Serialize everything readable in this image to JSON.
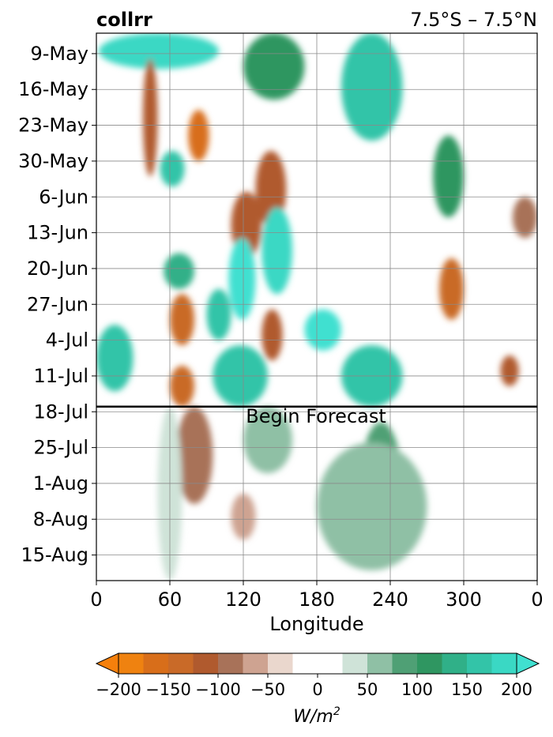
{
  "chart_data": {
    "type": "heatmap",
    "title": "collrr",
    "subtitle": "7.5°S – 7.5°N",
    "xlabel": "Longitude",
    "x_ticks": [
      {
        "lon": 0,
        "label": "0"
      },
      {
        "lon": 60,
        "label": "60"
      },
      {
        "lon": 120,
        "label": "120"
      },
      {
        "lon": 180,
        "label": "180"
      },
      {
        "lon": 240,
        "label": "240"
      },
      {
        "lon": 300,
        "label": "300"
      },
      {
        "lon": 360,
        "label": "0"
      }
    ],
    "xlim": [
      0,
      360
    ],
    "time_range": [
      "2024-05-05",
      "2024-08-20"
    ],
    "y_ticks": [
      {
        "date": "2024-05-09",
        "label": "9-May"
      },
      {
        "date": "2024-05-16",
        "label": "16-May"
      },
      {
        "date": "2024-05-23",
        "label": "23-May"
      },
      {
        "date": "2024-05-30",
        "label": "30-May"
      },
      {
        "date": "2024-06-06",
        "label": "6-Jun"
      },
      {
        "date": "2024-06-13",
        "label": "13-Jun"
      },
      {
        "date": "2024-06-20",
        "label": "20-Jun"
      },
      {
        "date": "2024-06-27",
        "label": "27-Jun"
      },
      {
        "date": "2024-07-04",
        "label": "4-Jul"
      },
      {
        "date": "2024-07-11",
        "label": "11-Jul"
      },
      {
        "date": "2024-07-18",
        "label": "18-Jul"
      },
      {
        "date": "2024-07-25",
        "label": "25-Jul"
      },
      {
        "date": "2024-08-01",
        "label": "1-Aug"
      },
      {
        "date": "2024-08-08",
        "label": "8-Aug"
      },
      {
        "date": "2024-08-15",
        "label": "15-Aug"
      }
    ],
    "forecast_start_date": "2024-07-17",
    "forecast_label": "Begin Forecast",
    "grid": true,
    "colorbar": {
      "label": "W/m",
      "label_exponent": "2",
      "orientation": "horizontal",
      "extend": "both",
      "levels": [
        -200,
        -175,
        -150,
        -125,
        -100,
        -75,
        -50,
        -25,
        25,
        50,
        75,
        100,
        125,
        150,
        175,
        200
      ],
      "colors": [
        "#ef8210",
        "#d86e1a",
        "#c96a28",
        "#b05a2e",
        "#a87259",
        "#cea391",
        "#ead7cd",
        "#ffffff",
        "#cfe3d8",
        "#8fc0a5",
        "#4fa075",
        "#2f9661",
        "#30b088",
        "#33c4a8",
        "#3ad8c4"
      ],
      "under_color": "#f5800c",
      "over_color": "#40e0d0",
      "tick_values": [
        -200,
        -150,
        -100,
        -50,
        0,
        50,
        100,
        150,
        200
      ],
      "tick_labels": [
        "−200",
        "−150",
        "−100",
        "−50",
        "0",
        "50",
        "100",
        "150",
        "200"
      ]
    },
    "anomaly_features": [
      {
        "date_start": "2024-05-05",
        "date_end": "2024-05-12",
        "lon_start": 2,
        "lon_end": 100,
        "value": 175
      },
      {
        "date_start": "2024-05-05",
        "date_end": "2024-05-26",
        "lon_start": 200,
        "lon_end": 250,
        "value": 150
      },
      {
        "date_start": "2024-05-05",
        "date_end": "2024-05-18",
        "lon_start": 120,
        "lon_end": 170,
        "value": 100
      },
      {
        "date_start": "2024-05-20",
        "date_end": "2024-05-30",
        "lon_start": 75,
        "lon_end": 92,
        "value": -175
      },
      {
        "date_start": "2024-05-10",
        "date_end": "2024-06-02",
        "lon_start": 38,
        "lon_end": 50,
        "value": -110
      },
      {
        "date_start": "2024-05-28",
        "date_end": "2024-06-04",
        "lon_start": 52,
        "lon_end": 72,
        "value": 150
      },
      {
        "date_start": "2024-05-28",
        "date_end": "2024-06-12",
        "lon_start": 130,
        "lon_end": 155,
        "value": -120
      },
      {
        "date_start": "2024-05-25",
        "date_end": "2024-06-10",
        "lon_start": 275,
        "lon_end": 300,
        "value": 100
      },
      {
        "date_start": "2024-06-05",
        "date_end": "2024-06-18",
        "lon_start": 110,
        "lon_end": 135,
        "value": -110
      },
      {
        "date_start": "2024-06-08",
        "date_end": "2024-06-25",
        "lon_start": 135,
        "lon_end": 160,
        "value": 175
      },
      {
        "date_start": "2024-06-06",
        "date_end": "2024-06-14",
        "lon_start": 340,
        "lon_end": 360,
        "value": -100
      },
      {
        "date_start": "2024-06-14",
        "date_end": "2024-06-30",
        "lon_start": 108,
        "lon_end": 130,
        "value": 200
      },
      {
        "date_start": "2024-06-17",
        "date_end": "2024-06-24",
        "lon_start": 55,
        "lon_end": 80,
        "value": 140
      },
      {
        "date_start": "2024-06-18",
        "date_end": "2024-06-30",
        "lon_start": 280,
        "lon_end": 300,
        "value": -130
      },
      {
        "date_start": "2024-06-24",
        "date_end": "2024-07-04",
        "lon_start": 90,
        "lon_end": 110,
        "value": 150
      },
      {
        "date_start": "2024-06-25",
        "date_end": "2024-07-05",
        "lon_start": 60,
        "lon_end": 80,
        "value": -140
      },
      {
        "date_start": "2024-06-28",
        "date_end": "2024-07-06",
        "lon_start": 170,
        "lon_end": 200,
        "value": 200
      },
      {
        "date_start": "2024-06-28",
        "date_end": "2024-07-08",
        "lon_start": 135,
        "lon_end": 152,
        "value": -110
      },
      {
        "date_start": "2024-07-01",
        "date_end": "2024-07-14",
        "lon_start": 0,
        "lon_end": 30,
        "value": 150
      },
      {
        "date_start": "2024-07-05",
        "date_end": "2024-07-17",
        "lon_start": 95,
        "lon_end": 140,
        "value": 160
      },
      {
        "date_start": "2024-07-09",
        "date_end": "2024-07-17",
        "lon_start": 60,
        "lon_end": 80,
        "value": -150
      },
      {
        "date_start": "2024-07-05",
        "date_end": "2024-07-17",
        "lon_start": 200,
        "lon_end": 250,
        "value": 150
      },
      {
        "date_start": "2024-07-07",
        "date_end": "2024-07-13",
        "lon_start": 330,
        "lon_end": 345,
        "value": -120
      },
      {
        "date_start": "2024-07-17",
        "date_end": "2024-08-05",
        "lon_start": 65,
        "lon_end": 95,
        "value": -90
      },
      {
        "date_start": "2024-07-20",
        "date_end": "2024-08-15",
        "lon_start": 215,
        "lon_end": 250,
        "value": 75
      },
      {
        "date_start": "2024-07-24",
        "date_end": "2024-08-18",
        "lon_start": 180,
        "lon_end": 270,
        "value": 50
      },
      {
        "date_start": "2024-07-17",
        "date_end": "2024-07-30",
        "lon_start": 120,
        "lon_end": 160,
        "value": 60
      },
      {
        "date_start": "2024-08-03",
        "date_end": "2024-08-12",
        "lon_start": 110,
        "lon_end": 130,
        "value": -60
      },
      {
        "date_start": "2024-07-17",
        "date_end": "2024-08-20",
        "lon_start": 50,
        "lon_end": 70,
        "value": 30
      }
    ]
  }
}
